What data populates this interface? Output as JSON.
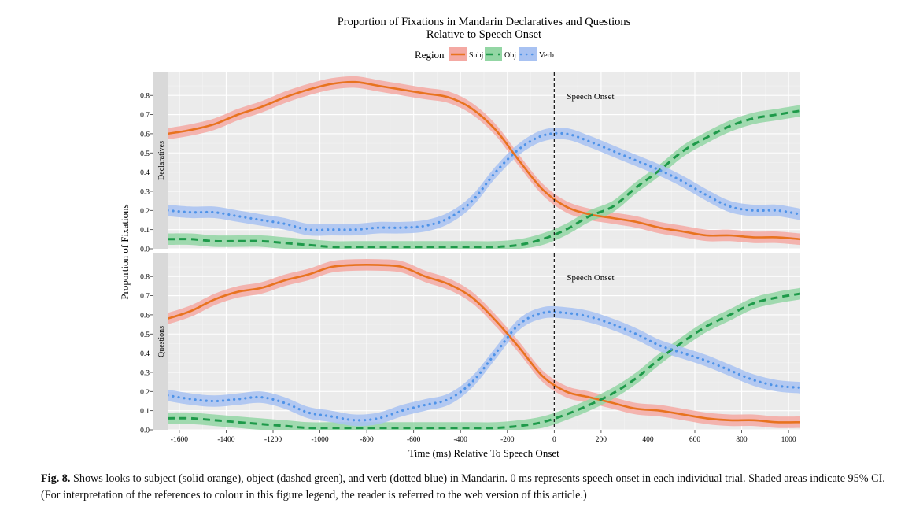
{
  "chart_data": {
    "type": "line",
    "title": "Proportion of Fixations in Mandarin Declaratives and Questions",
    "subtitle": "Relative to Speech Onset",
    "xlabel": "Time (ms) Relative To Speech Onset",
    "ylabel": "Proportion of Fixations",
    "xlim": [
      -1650,
      1050
    ],
    "ylim": [
      0,
      0.92
    ],
    "x_ticks": [
      "-1600",
      "-1400",
      "-1200",
      "-1000",
      "-800",
      "-600",
      "-400",
      "-200",
      "0",
      "200",
      "400",
      "600",
      "800",
      "1000"
    ],
    "x_tick_values": [
      -1600,
      -1400,
      -1200,
      -1000,
      -800,
      -600,
      -400,
      -200,
      0,
      200,
      400,
      600,
      800,
      1000
    ],
    "y_ticks": [
      "0.0",
      "0.1",
      "0.2",
      "0.3",
      "0.4",
      "0.5",
      "0.6",
      "0.7",
      "0.8"
    ],
    "y_tick_values": [
      0,
      0.1,
      0.2,
      0.3,
      0.4,
      0.5,
      0.6,
      0.7,
      0.8
    ],
    "grid": true,
    "legend": {
      "title": "Region",
      "placement": "top",
      "entries": [
        "Subj",
        "Obj",
        "Verb"
      ]
    },
    "annotation": "Speech Onset",
    "annotation_x": 0,
    "ci_band": 0.03,
    "colors": {
      "Subj": "#e8731f",
      "Subj_band": "#f4a9a3",
      "Obj": "#1e9a4a",
      "Obj_band": "#93d6a4",
      "Verb": "#4f93e8",
      "Verb_band": "#a8c2f2",
      "panel_bg": "#ebebeb",
      "strip_bg": "#d9d9d9"
    },
    "panels": [
      {
        "strip": "Declaratives",
        "series": [
          {
            "name": "Subj",
            "x": [
              -1650,
              -1550,
              -1450,
              -1350,
              -1250,
              -1150,
              -1050,
              -950,
              -850,
              -750,
              -650,
              -550,
              -450,
              -350,
              -250,
              -150,
              -50,
              50,
              150,
              250,
              350,
              450,
              550,
              650,
              750,
              850,
              950,
              1050
            ],
            "y": [
              0.6,
              0.62,
              0.65,
              0.7,
              0.74,
              0.79,
              0.83,
              0.86,
              0.87,
              0.85,
              0.83,
              0.81,
              0.79,
              0.73,
              0.62,
              0.46,
              0.31,
              0.22,
              0.18,
              0.16,
              0.14,
              0.11,
              0.09,
              0.07,
              0.07,
              0.06,
              0.06,
              0.05
            ]
          },
          {
            "name": "Obj",
            "x": [
              -1650,
              -1550,
              -1450,
              -1350,
              -1250,
              -1150,
              -1050,
              -950,
              -850,
              -750,
              -650,
              -550,
              -450,
              -350,
              -250,
              -150,
              -50,
              50,
              150,
              250,
              350,
              450,
              550,
              650,
              750,
              850,
              950,
              1050
            ],
            "y": [
              0.05,
              0.05,
              0.04,
              0.04,
              0.04,
              0.03,
              0.02,
              0.01,
              0.01,
              0.01,
              0.01,
              0.01,
              0.01,
              0.01,
              0.01,
              0.02,
              0.05,
              0.1,
              0.17,
              0.22,
              0.32,
              0.41,
              0.51,
              0.58,
              0.64,
              0.68,
              0.7,
              0.72
            ]
          },
          {
            "name": "Verb",
            "x": [
              -1650,
              -1550,
              -1450,
              -1350,
              -1250,
              -1150,
              -1050,
              -950,
              -850,
              -750,
              -650,
              -550,
              -450,
              -350,
              -250,
              -150,
              -50,
              50,
              150,
              250,
              350,
              450,
              550,
              650,
              750,
              850,
              950,
              1050
            ],
            "y": [
              0.2,
              0.19,
              0.19,
              0.17,
              0.15,
              0.13,
              0.1,
              0.1,
              0.1,
              0.11,
              0.11,
              0.12,
              0.16,
              0.25,
              0.4,
              0.52,
              0.59,
              0.6,
              0.56,
              0.51,
              0.46,
              0.41,
              0.35,
              0.28,
              0.22,
              0.2,
              0.2,
              0.18
            ]
          }
        ]
      },
      {
        "strip": "Questions",
        "series": [
          {
            "name": "Subj",
            "x": [
              -1650,
              -1550,
              -1450,
              -1350,
              -1250,
              -1150,
              -1050,
              -950,
              -850,
              -750,
              -650,
              -550,
              -450,
              -350,
              -250,
              -150,
              -50,
              50,
              150,
              250,
              350,
              450,
              550,
              650,
              750,
              850,
              950,
              1050
            ],
            "y": [
              0.58,
              0.62,
              0.68,
              0.72,
              0.74,
              0.78,
              0.81,
              0.85,
              0.86,
              0.86,
              0.85,
              0.8,
              0.76,
              0.69,
              0.57,
              0.43,
              0.28,
              0.2,
              0.17,
              0.14,
              0.11,
              0.1,
              0.08,
              0.06,
              0.05,
              0.05,
              0.04,
              0.04
            ]
          },
          {
            "name": "Obj",
            "x": [
              -1650,
              -1550,
              -1450,
              -1350,
              -1250,
              -1150,
              -1050,
              -950,
              -850,
              -750,
              -650,
              -550,
              -450,
              -350,
              -250,
              -150,
              -50,
              50,
              150,
              250,
              350,
              450,
              550,
              650,
              750,
              850,
              950,
              1050
            ],
            "y": [
              0.06,
              0.06,
              0.05,
              0.04,
              0.03,
              0.02,
              0.01,
              0.01,
              0.01,
              0.01,
              0.01,
              0.01,
              0.01,
              0.01,
              0.01,
              0.02,
              0.04,
              0.08,
              0.13,
              0.19,
              0.27,
              0.37,
              0.46,
              0.54,
              0.6,
              0.66,
              0.69,
              0.71
            ]
          },
          {
            "name": "Verb",
            "x": [
              -1650,
              -1550,
              -1450,
              -1350,
              -1250,
              -1150,
              -1050,
              -950,
              -850,
              -750,
              -650,
              -550,
              -450,
              -350,
              -250,
              -150,
              -50,
              50,
              150,
              250,
              350,
              450,
              550,
              650,
              750,
              850,
              950,
              1050
            ],
            "y": [
              0.18,
              0.16,
              0.15,
              0.16,
              0.17,
              0.14,
              0.09,
              0.07,
              0.05,
              0.06,
              0.1,
              0.13,
              0.16,
              0.25,
              0.4,
              0.55,
              0.61,
              0.61,
              0.59,
              0.55,
              0.5,
              0.44,
              0.4,
              0.36,
              0.31,
              0.26,
              0.23,
              0.22
            ]
          }
        ]
      }
    ]
  },
  "caption": {
    "label": "Fig. 8.",
    "text": " Shows looks to subject (solid orange), object (dashed green), and verb (dotted blue) in Mandarin. 0 ms represents speech onset in each individual trial. Shaded areas indicate 95% CI. (For interpretation of the references to colour in this figure legend, the reader is referred to the web version of this article.)"
  }
}
